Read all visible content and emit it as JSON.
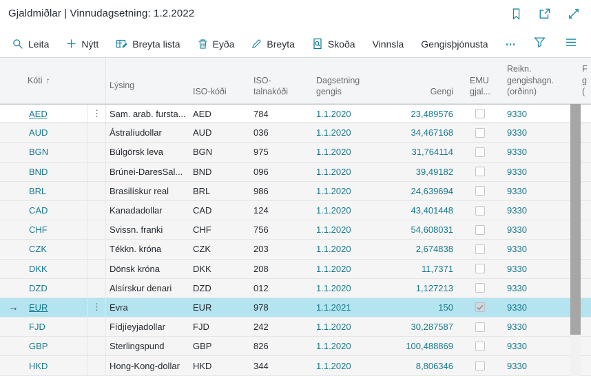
{
  "page": {
    "title": "Gjaldmiðlar | Vinnudagsetning: 1.2.2022"
  },
  "colors": {
    "accent": "#17798e",
    "selection_row": "#b4e4ef",
    "row_bg": "#f5f5f6",
    "header_bg": "#f4f5f6"
  },
  "window_icons": [
    {
      "name": "bookmark-icon"
    },
    {
      "name": "open-in-new-window-icon"
    },
    {
      "name": "expand-fullscreen-icon"
    }
  ],
  "toolbar": {
    "items": [
      {
        "label": "Leita",
        "icon": "search-icon"
      },
      {
        "label": "Nýtt",
        "icon": "plus-icon"
      },
      {
        "label": "Breyta lista",
        "icon": "edit-list-icon"
      },
      {
        "label": "Eyða",
        "icon": "trash-icon"
      },
      {
        "label": "Breyta",
        "icon": "pencil-icon"
      },
      {
        "label": "Skoða",
        "icon": "view-document-icon"
      },
      {
        "label": "Vinnsla",
        "icon": ""
      },
      {
        "label": "Gengisþjónusta",
        "icon": ""
      }
    ],
    "more_label": "⋯",
    "right_icons": [
      {
        "name": "filter-icon"
      },
      {
        "name": "choose-view-icon"
      }
    ]
  },
  "table": {
    "headers": {
      "code": "Kóti",
      "sort_indicator": "↑",
      "description": "Lýsing",
      "iso_code": "ISO-kóði",
      "iso_numeric": "ISO-\ntalnakóði",
      "rate_date": "Dagsetning\ngengis",
      "rate": "Gengi",
      "emu": "EMU\ngjal...",
      "gains_account": "Reikn.\ngengishagn.\n(orðinn)",
      "partial_column": "F\ng\n("
    },
    "selected_row_arrow": "→",
    "row_menu_glyph": "⋮",
    "rows": [
      {
        "code": "AED",
        "description": "Sam. arab. fursta...",
        "iso_code": "AED",
        "iso_numeric": "784",
        "rate_date": "1.1.2020",
        "rate": "23,489576",
        "emu": false,
        "gains_account": "9330",
        "state": "focused",
        "has_menu": true
      },
      {
        "code": "AUD",
        "description": "Ástralíudollar",
        "iso_code": "AUD",
        "iso_numeric": "036",
        "rate_date": "1.1.2020",
        "rate": "34,467168",
        "emu": false,
        "gains_account": "9330",
        "state": "",
        "has_menu": false
      },
      {
        "code": "BGN",
        "description": "Búlgörsk leva",
        "iso_code": "BGN",
        "iso_numeric": "975",
        "rate_date": "1.1.2020",
        "rate": "31,764114",
        "emu": false,
        "gains_account": "9330",
        "state": "",
        "has_menu": false
      },
      {
        "code": "BND",
        "description": "Brúnei-DaresSal...",
        "iso_code": "BND",
        "iso_numeric": "096",
        "rate_date": "1.1.2020",
        "rate": "39,49182",
        "emu": false,
        "gains_account": "9330",
        "state": "",
        "has_menu": false
      },
      {
        "code": "BRL",
        "description": "Brasilískur real",
        "iso_code": "BRL",
        "iso_numeric": "986",
        "rate_date": "1.1.2020",
        "rate": "24,639694",
        "emu": false,
        "gains_account": "9330",
        "state": "",
        "has_menu": false
      },
      {
        "code": "CAD",
        "description": "Kanadadollar",
        "iso_code": "CAD",
        "iso_numeric": "124",
        "rate_date": "1.1.2020",
        "rate": "43,401448",
        "emu": false,
        "gains_account": "9330",
        "state": "",
        "has_menu": false
      },
      {
        "code": "CHF",
        "description": "Svissn. franki",
        "iso_code": "CHF",
        "iso_numeric": "756",
        "rate_date": "1.1.2020",
        "rate": "54,608031",
        "emu": false,
        "gains_account": "9330",
        "state": "",
        "has_menu": false
      },
      {
        "code": "CZK",
        "description": "Tékkn. króna",
        "iso_code": "CZK",
        "iso_numeric": "203",
        "rate_date": "1.1.2020",
        "rate": "2,674838",
        "emu": false,
        "gains_account": "9330",
        "state": "",
        "has_menu": false
      },
      {
        "code": "DKK",
        "description": "Dönsk króna",
        "iso_code": "DKK",
        "iso_numeric": "208",
        "rate_date": "1.1.2020",
        "rate": "11,7371",
        "emu": false,
        "gains_account": "9330",
        "state": "",
        "has_menu": false
      },
      {
        "code": "DZD",
        "description": "Alsírskur denari",
        "iso_code": "DZD",
        "iso_numeric": "012",
        "rate_date": "1.1.2020",
        "rate": "1,127213",
        "emu": false,
        "gains_account": "9330",
        "state": "",
        "has_menu": false
      },
      {
        "code": "EUR",
        "description": "Evra",
        "iso_code": "EUR",
        "iso_numeric": "978",
        "rate_date": "1.1.2021",
        "rate": "150",
        "emu": true,
        "gains_account": "9330",
        "state": "selected",
        "has_menu": true
      },
      {
        "code": "FJD",
        "description": "Fídjíeyjadollar",
        "iso_code": "FJD",
        "iso_numeric": "242",
        "rate_date": "1.1.2020",
        "rate": "30,287587",
        "emu": false,
        "gains_account": "9330",
        "state": "",
        "has_menu": false
      },
      {
        "code": "GBP",
        "description": "Sterlingspund",
        "iso_code": "GBP",
        "iso_numeric": "826",
        "rate_date": "1.1.2020",
        "rate": "100,488869",
        "emu": false,
        "gains_account": "9330",
        "state": "",
        "has_menu": false
      },
      {
        "code": "HKD",
        "description": "Hong-Kong-dollar",
        "iso_code": "HKD",
        "iso_numeric": "344",
        "rate_date": "1.1.2020",
        "rate": "8,806346",
        "emu": false,
        "gains_account": "9330",
        "state": "",
        "has_menu": false
      }
    ]
  }
}
